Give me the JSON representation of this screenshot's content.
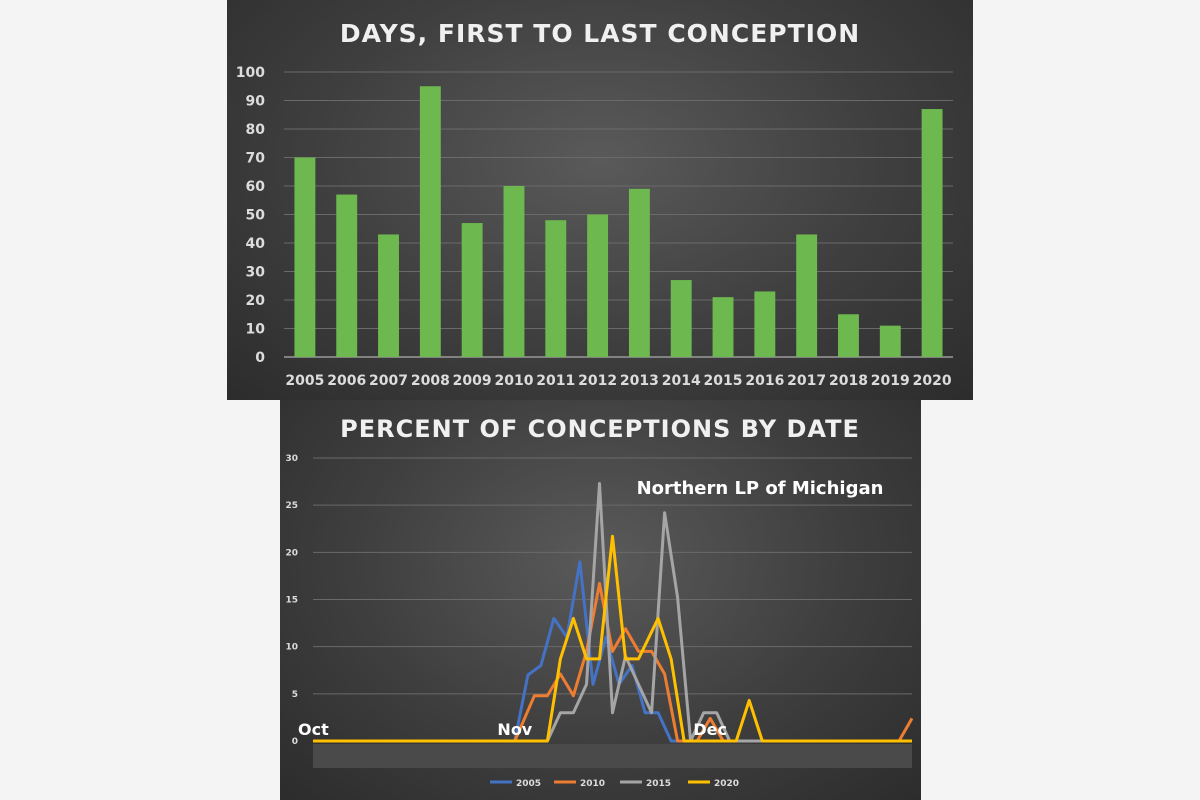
{
  "charts": {
    "colors": {
      "bar": "#6db84f",
      "grid": "#6a6a6a",
      "axis": "#9a9a9a",
      "series": [
        "#4472c4",
        "#ed7d31",
        "#a5a5a5",
        "#ffc000"
      ]
    }
  },
  "chart_data": [
    {
      "type": "bar",
      "title": "DAYS, FIRST TO LAST CONCEPTION",
      "categories": [
        "2005",
        "2006",
        "2007",
        "2008",
        "2009",
        "2010",
        "2011",
        "2012",
        "2013",
        "2014",
        "2015",
        "2016",
        "2017",
        "2018",
        "2019",
        "2020"
      ],
      "values": [
        70,
        57,
        43,
        95,
        47,
        60,
        48,
        50,
        59,
        27,
        21,
        23,
        43,
        15,
        11,
        87
      ],
      "ylim": [
        0,
        100
      ],
      "yticks": [
        "0",
        "10",
        "20",
        "30",
        "40",
        "50",
        "60",
        "70",
        "80",
        "90",
        "100"
      ],
      "grid": true,
      "legend": "none"
    },
    {
      "type": "line",
      "title": "PERCENT OF CONCEPTIONS BY DATE",
      "annotation": "Northern LP of Michigan",
      "x_labels": [
        "Oct",
        "Nov",
        "Dec"
      ],
      "x_label_positions": [
        0,
        31,
        61
      ],
      "x_range": [
        0,
        92
      ],
      "ylim": [
        0,
        30
      ],
      "yticks": [
        "0",
        "5",
        "10",
        "15",
        "20",
        "25",
        "30"
      ],
      "grid": true,
      "legend": "bottom",
      "series": [
        {
          "name": "2005",
          "points": [
            [
              0,
              0
            ],
            [
              31,
              0
            ],
            [
              33,
              7
            ],
            [
              35,
              8
            ],
            [
              37,
              13
            ],
            [
              39,
              11
            ],
            [
              41,
              19
            ],
            [
              43,
              6
            ],
            [
              45,
              11
            ],
            [
              47,
              6
            ],
            [
              49,
              8
            ],
            [
              51,
              3
            ],
            [
              53,
              3
            ],
            [
              55,
              0
            ],
            [
              92,
              0
            ]
          ]
        },
        {
          "name": "2010",
          "points": [
            [
              0,
              0
            ],
            [
              31,
              0
            ],
            [
              34,
              4.8
            ],
            [
              36,
              4.8
            ],
            [
              38,
              7.1
            ],
            [
              40,
              4.8
            ],
            [
              42,
              9.5
            ],
            [
              44,
              16.7
            ],
            [
              46,
              9.5
            ],
            [
              48,
              11.9
            ],
            [
              50,
              9.5
            ],
            [
              52,
              9.5
            ],
            [
              54,
              7.1
            ],
            [
              56,
              0
            ],
            [
              59,
              0
            ],
            [
              61,
              2.4
            ],
            [
              63,
              0
            ],
            [
              90,
              0
            ],
            [
              92,
              2.4
            ]
          ]
        },
        {
          "name": "2015",
          "points": [
            [
              0,
              0
            ],
            [
              36,
              0
            ],
            [
              38,
              3
            ],
            [
              40,
              3
            ],
            [
              42,
              6
            ],
            [
              44,
              27.3
            ],
            [
              46,
              3
            ],
            [
              48,
              9
            ],
            [
              50,
              6
            ],
            [
              52,
              3
            ],
            [
              54,
              24.2
            ],
            [
              56,
              15.2
            ],
            [
              58,
              0
            ],
            [
              60,
              3
            ],
            [
              62,
              3
            ],
            [
              64,
              0
            ],
            [
              92,
              0
            ]
          ]
        },
        {
          "name": "2020",
          "points": [
            [
              0,
              0
            ],
            [
              36,
              0
            ],
            [
              38,
              8.7
            ],
            [
              40,
              13
            ],
            [
              42,
              8.7
            ],
            [
              44,
              8.7
            ],
            [
              46,
              21.7
            ],
            [
              48,
              8.7
            ],
            [
              50,
              8.7
            ],
            [
              53,
              13
            ],
            [
              55,
              8.7
            ],
            [
              57,
              0
            ],
            [
              59,
              0
            ],
            [
              61,
              0
            ],
            [
              65,
              0
            ],
            [
              67,
              4.3
            ],
            [
              69,
              0
            ],
            [
              92,
              0
            ]
          ]
        }
      ]
    }
  ]
}
